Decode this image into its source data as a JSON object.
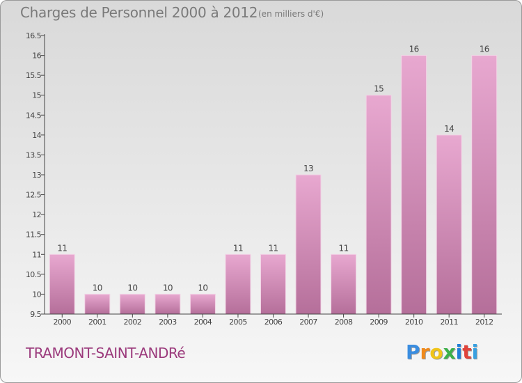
{
  "header": {
    "title": "Charges de Personnel 2000 à 2012",
    "subtitle": "(en milliers d'€)"
  },
  "footer": {
    "place": "TRAMONT-SAINT-ANDRé",
    "logo_text": "Proxiti"
  },
  "colors": {
    "bar_top": "#e8a8d0",
    "bar_bottom": "#b56f9a",
    "place_text": "#9b3a7c",
    "logo": [
      "#3a8de0",
      "#f08a1c",
      "#f0c419",
      "#3cb04a",
      "#1e7fd8",
      "#e0433a",
      "#38a0e0"
    ]
  },
  "chart_data": {
    "type": "bar",
    "categories": [
      "2000",
      "2001",
      "2002",
      "2003",
      "2004",
      "2005",
      "2006",
      "2007",
      "2008",
      "2009",
      "2010",
      "2011",
      "2012"
    ],
    "values": [
      11,
      10,
      10,
      10,
      10,
      11,
      11,
      13,
      11,
      15,
      16,
      14,
      16
    ],
    "value_labels": [
      "11",
      "10",
      "10",
      "10",
      "10",
      "11",
      "11",
      "13",
      "11",
      "15",
      "16",
      "14",
      "16"
    ],
    "ylim": [
      9.5,
      16.5
    ],
    "yticks": [
      9.5,
      10,
      10.5,
      11,
      11.5,
      12,
      12.5,
      13,
      13.5,
      14,
      14.5,
      15,
      15.5,
      16,
      16.5
    ],
    "ytick_labels": [
      "9.5",
      "10",
      "10.5",
      "11",
      "11.5",
      "12",
      "12.5",
      "13",
      "13.5",
      "14",
      "14.5",
      "15",
      "15.5",
      "16",
      "16.5"
    ],
    "grid": false,
    "legend": "none"
  }
}
